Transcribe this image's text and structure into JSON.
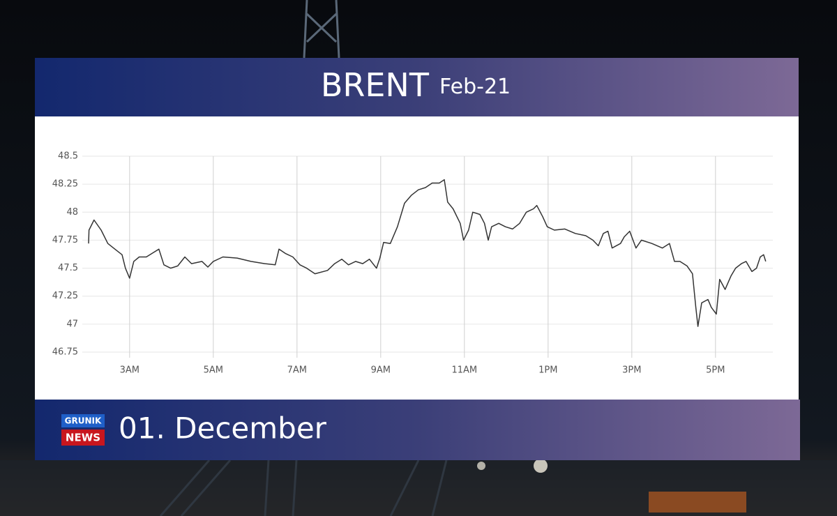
{
  "chart_data": {
    "type": "line",
    "title": "BRENT",
    "subtitle": "Feb-21",
    "x": [
      2.02,
      2.03,
      2.15,
      2.32,
      2.48,
      2.65,
      2.82,
      2.9,
      3.0,
      3.1,
      3.23,
      3.4,
      3.57,
      3.7,
      3.82,
      3.98,
      4.15,
      4.32,
      4.48,
      4.73,
      4.87,
      5.0,
      5.23,
      5.57,
      5.9,
      6.23,
      6.48,
      6.57,
      6.73,
      6.9,
      7.07,
      7.23,
      7.43,
      7.73,
      7.9,
      8.07,
      8.23,
      8.4,
      8.57,
      8.73,
      8.9,
      8.98,
      9.07,
      9.23,
      9.4,
      9.57,
      9.73,
      9.9,
      10.07,
      10.23,
      10.4,
      10.52,
      10.6,
      10.73,
      10.9,
      10.98,
      11.1,
      11.2,
      11.37,
      11.48,
      11.57,
      11.65,
      11.82,
      11.98,
      12.15,
      12.32,
      12.48,
      12.65,
      12.73,
      12.87,
      12.98,
      13.15,
      13.4,
      13.65,
      13.9,
      14.07,
      14.2,
      14.32,
      14.43,
      14.53,
      14.73,
      14.82,
      14.95,
      15.1,
      15.23,
      15.48,
      15.73,
      15.9,
      16.02,
      16.15,
      16.32,
      16.45,
      16.53,
      16.58,
      16.67,
      16.82,
      16.9,
      17.02,
      17.1,
      17.23,
      17.37,
      17.48,
      17.62,
      17.73,
      17.87,
      17.98,
      18.07,
      18.15,
      18.2
    ],
    "values": [
      47.72,
      47.84,
      47.93,
      47.84,
      47.72,
      47.67,
      47.62,
      47.5,
      47.41,
      47.56,
      47.6,
      47.6,
      47.64,
      47.67,
      47.53,
      47.5,
      47.52,
      47.6,
      47.54,
      47.56,
      47.51,
      47.56,
      47.6,
      47.59,
      47.56,
      47.54,
      47.53,
      47.67,
      47.63,
      47.6,
      47.53,
      47.5,
      47.45,
      47.48,
      47.54,
      47.58,
      47.53,
      47.56,
      47.54,
      47.58,
      47.5,
      47.59,
      47.73,
      47.72,
      47.87,
      48.08,
      48.15,
      48.2,
      48.22,
      48.26,
      48.26,
      48.29,
      48.09,
      48.03,
      47.9,
      47.75,
      47.84,
      48.0,
      47.98,
      47.9,
      47.75,
      47.87,
      47.9,
      47.87,
      47.85,
      47.9,
      48.0,
      48.03,
      48.06,
      47.96,
      47.87,
      47.84,
      47.85,
      47.81,
      47.79,
      47.75,
      47.7,
      47.81,
      47.83,
      47.68,
      47.72,
      47.78,
      47.83,
      47.68,
      47.75,
      47.72,
      47.68,
      47.72,
      47.56,
      47.56,
      47.52,
      47.45,
      47.15,
      46.98,
      47.19,
      47.22,
      47.15,
      47.09,
      47.4,
      47.31,
      47.43,
      47.5,
      47.54,
      47.56,
      47.47,
      47.5,
      47.6,
      47.62,
      47.56
    ],
    "color": "#333333",
    "xlim": [
      1.87,
      18.37
    ],
    "xticks": [
      {
        "value": 3,
        "label": "3AM"
      },
      {
        "value": 5,
        "label": "5AM"
      },
      {
        "value": 7,
        "label": "7AM"
      },
      {
        "value": 9,
        "label": "9AM"
      },
      {
        "value": 11,
        "label": "11AM"
      },
      {
        "value": 13,
        "label": "1PM"
      },
      {
        "value": 15,
        "label": "3PM"
      },
      {
        "value": 17,
        "label": "5PM"
      }
    ],
    "ylim": [
      46.75,
      48.5
    ],
    "yticks": [
      46.75,
      47,
      47.25,
      47.5,
      47.75,
      48,
      48.25,
      48.5
    ],
    "grid": true
  },
  "footer": {
    "logo_top": "GRUNIK",
    "logo_bottom": "NEWS",
    "date": "01. December"
  }
}
